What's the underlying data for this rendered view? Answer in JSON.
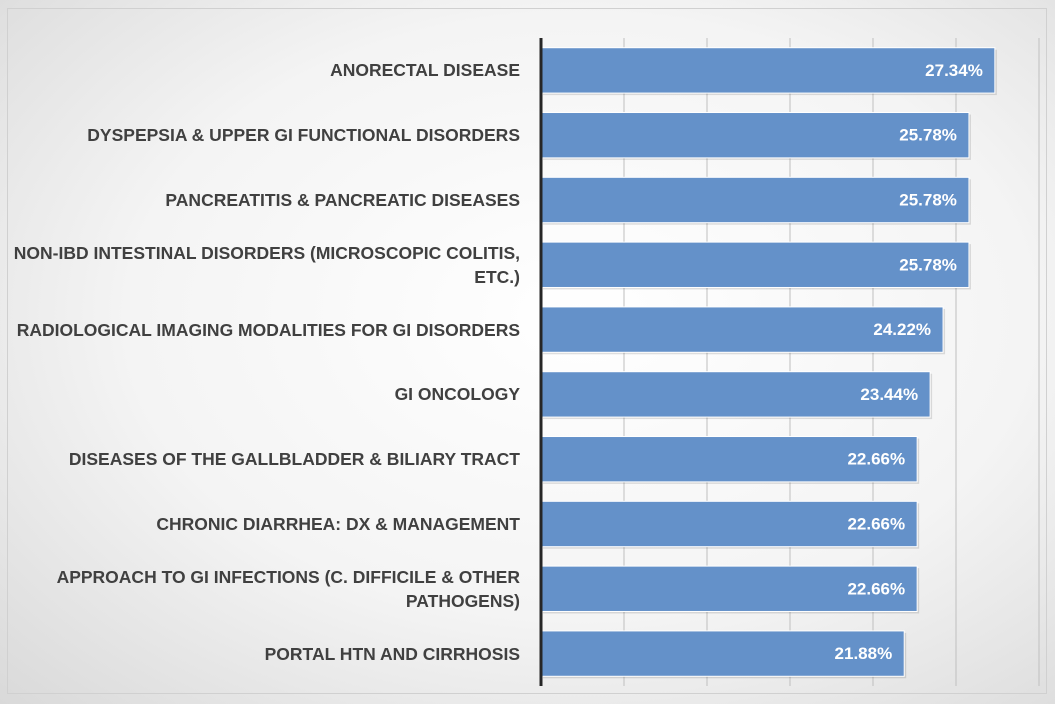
{
  "chart_data": {
    "type": "barh",
    "categories": [
      "ANORECTAL DISEASE",
      "DYSPEPSIA & UPPER GI FUNCTIONAL DISORDERS",
      "PANCREATITIS & PANCREATIC DISEASES",
      "NON-IBD INTESTINAL DISORDERS (MICROSCOPIC COLITIS, ETC.)",
      "RADIOLOGICAL IMAGING MODALITIES FOR GI DISORDERS",
      "GI ONCOLOGY",
      "DISEASES OF THE GALLBLADDER & BILIARY TRACT",
      "CHRONIC DIARRHEA: DX & MANAGEMENT",
      "APPROACH TO GI INFECTIONS (C. DIFFICILE & OTHER PATHOGENS)",
      "PORTAL HTN AND CIRRHOSIS"
    ],
    "values": [
      27.34,
      25.78,
      25.78,
      25.78,
      24.22,
      23.44,
      22.66,
      22.66,
      22.66,
      21.88
    ],
    "value_labels": [
      "27.34%",
      "25.78%",
      "25.78%",
      "25.78%",
      "24.22%",
      "23.44%",
      "22.66%",
      "22.66%",
      "22.66%",
      "21.88%"
    ],
    "color": "#6491c9",
    "xlim": [
      0,
      30
    ],
    "xticks": [
      0,
      5,
      10,
      15,
      20,
      25,
      30
    ],
    "grid": true
  }
}
